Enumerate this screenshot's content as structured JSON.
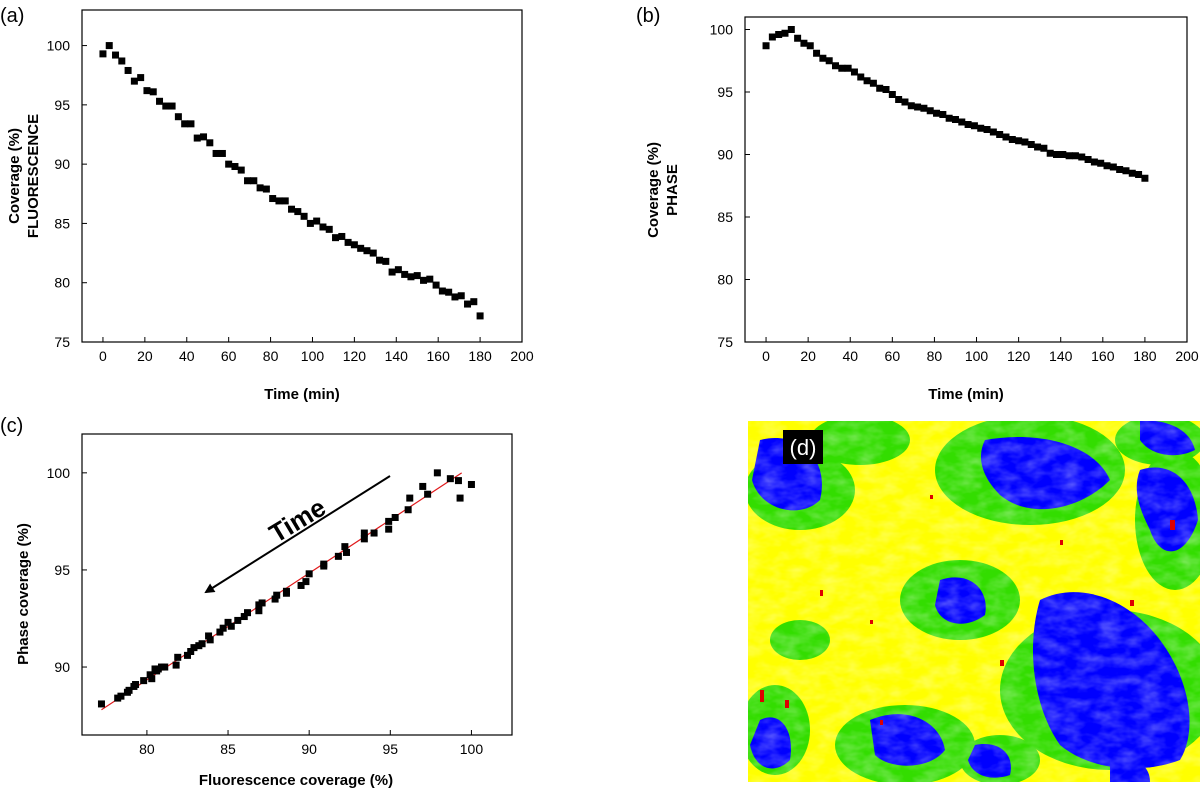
{
  "panels": {
    "a": "(a)",
    "b": "(b)",
    "c": "(c)",
    "d": "(d)"
  },
  "colors": {
    "marker": "#000000",
    "fit_line": "#e0191b",
    "map_yellow": "#ffff00",
    "map_blue": "#0000ff",
    "map_green": "#33dd00",
    "map_red": "#dd0000",
    "label_bg": "#000000"
  },
  "chart_data": [
    {
      "id": "a",
      "type": "scatter",
      "xlabel": "Time (min)",
      "ylabel": [
        "Coverage (%)",
        "FLUORESCENCE"
      ],
      "xlim": [
        -10,
        200
      ],
      "ylim": [
        75,
        103
      ],
      "xticks": [
        0,
        20,
        40,
        60,
        80,
        100,
        120,
        140,
        160,
        180,
        200
      ],
      "yticks": [
        75,
        80,
        85,
        90,
        95,
        100
      ],
      "series": [
        {
          "x": [
            0,
            3,
            6,
            9,
            12,
            15,
            18,
            21,
            24,
            27,
            30,
            33,
            36,
            39,
            42,
            45,
            48,
            51,
            54,
            57,
            60,
            63,
            66,
            69,
            72,
            75,
            78,
            81,
            84,
            87,
            90,
            93,
            96,
            99,
            102,
            105,
            108,
            111,
            114,
            117,
            120,
            123,
            126,
            129,
            132,
            135,
            138,
            141,
            144,
            147,
            150,
            153,
            156,
            159,
            162,
            165,
            168,
            171,
            174,
            177,
            180
          ],
          "y": [
            99.3,
            100.0,
            99.2,
            98.7,
            97.9,
            97.0,
            97.3,
            96.2,
            96.1,
            95.3,
            94.9,
            94.9,
            94.0,
            93.4,
            93.4,
            92.2,
            92.3,
            91.8,
            90.9,
            90.9,
            90.0,
            89.8,
            89.5,
            88.6,
            88.6,
            88.0,
            87.9,
            87.1,
            86.9,
            86.9,
            86.2,
            86.0,
            85.6,
            85.0,
            85.2,
            84.7,
            84.5,
            83.8,
            83.9,
            83.4,
            83.2,
            82.9,
            82.7,
            82.5,
            81.9,
            81.8,
            80.9,
            81.1,
            80.7,
            80.5,
            80.6,
            80.2,
            80.3,
            79.8,
            79.3,
            79.2,
            78.8,
            78.9,
            78.2,
            78.4,
            77.2
          ]
        }
      ]
    },
    {
      "id": "b",
      "type": "scatter",
      "xlabel": "Time (min)",
      "ylabel": [
        "Coverage (%)",
        "PHASE"
      ],
      "xlim": [
        -10,
        200
      ],
      "ylim": [
        75,
        101
      ],
      "xticks": [
        0,
        20,
        40,
        60,
        80,
        100,
        120,
        140,
        160,
        180,
        200
      ],
      "yticks": [
        75,
        80,
        85,
        90,
        95,
        100
      ],
      "series": [
        {
          "x": [
            0,
            3,
            6,
            9,
            12,
            15,
            18,
            21,
            24,
            27,
            30,
            33,
            36,
            39,
            42,
            45,
            48,
            51,
            54,
            57,
            60,
            63,
            66,
            69,
            72,
            75,
            78,
            81,
            84,
            87,
            90,
            93,
            96,
            99,
            102,
            105,
            108,
            111,
            114,
            117,
            120,
            123,
            126,
            129,
            132,
            135,
            138,
            141,
            144,
            147,
            150,
            153,
            156,
            159,
            162,
            165,
            168,
            171,
            174,
            177,
            180
          ],
          "y": [
            98.7,
            99.4,
            99.6,
            99.7,
            100.0,
            99.3,
            98.9,
            98.7,
            98.1,
            97.7,
            97.5,
            97.1,
            96.9,
            96.9,
            96.6,
            96.2,
            95.9,
            95.7,
            95.3,
            95.2,
            94.8,
            94.4,
            94.2,
            93.9,
            93.8,
            93.7,
            93.5,
            93.3,
            93.2,
            92.9,
            92.8,
            92.6,
            92.4,
            92.3,
            92.1,
            92.0,
            91.8,
            91.6,
            91.4,
            91.2,
            91.1,
            91.0,
            90.8,
            90.6,
            90.5,
            90.1,
            90.0,
            90.0,
            89.9,
            89.9,
            89.8,
            89.6,
            89.4,
            89.3,
            89.1,
            89.0,
            88.8,
            88.7,
            88.5,
            88.4,
            88.1
          ]
        }
      ]
    },
    {
      "id": "c",
      "type": "scatter",
      "xlabel": "Fluorescence coverage (%)",
      "ylabel": "Phase coverage (%)",
      "xlim": [
        76,
        102.5
      ],
      "ylim": [
        86.5,
        102
      ],
      "xticks": [
        80,
        85,
        90,
        95,
        100
      ],
      "yticks": [
        90,
        95,
        100
      ],
      "annotation": "Time",
      "fit_line": {
        "x": [
          77.2,
          99.4
        ],
        "y": [
          87.8,
          100.0
        ]
      },
      "series": [
        {
          "x": [
            77.2,
            78.2,
            78.4,
            78.8,
            78.9,
            79.2,
            79.3,
            79.8,
            80.3,
            80.2,
            80.6,
            80.5,
            80.7,
            81.1,
            80.9,
            81.8,
            81.9,
            82.5,
            82.7,
            82.9,
            83.2,
            83.4,
            83.9,
            83.8,
            84.5,
            84.7,
            85.2,
            85.0,
            85.6,
            86.0,
            86.2,
            86.9,
            86.9,
            87.1,
            87.9,
            88.0,
            88.6,
            88.6,
            89.5,
            89.8,
            90.0,
            90.9,
            90.9,
            91.8,
            92.3,
            92.2,
            93.4,
            93.4,
            94.0,
            94.9,
            94.9,
            95.3,
            96.1,
            96.2,
            97.3,
            97.0,
            97.9,
            98.7,
            99.2,
            100.0,
            99.3
          ],
          "y": [
            88.1,
            88.4,
            88.5,
            88.7,
            88.8,
            89.0,
            89.1,
            89.3,
            89.4,
            89.6,
            89.8,
            89.9,
            89.9,
            90.0,
            90.0,
            90.1,
            90.5,
            90.6,
            90.8,
            91.0,
            91.1,
            91.2,
            91.4,
            91.6,
            91.8,
            92.0,
            92.1,
            92.3,
            92.4,
            92.6,
            92.8,
            92.9,
            93.2,
            93.3,
            93.5,
            93.7,
            93.8,
            93.9,
            94.2,
            94.4,
            94.8,
            95.2,
            95.3,
            95.7,
            95.9,
            96.2,
            96.6,
            96.9,
            96.9,
            97.1,
            97.5,
            97.7,
            98.1,
            98.7,
            98.9,
            99.3,
            100.0,
            99.7,
            99.6,
            99.4,
            98.7
          ]
        }
      ]
    }
  ]
}
